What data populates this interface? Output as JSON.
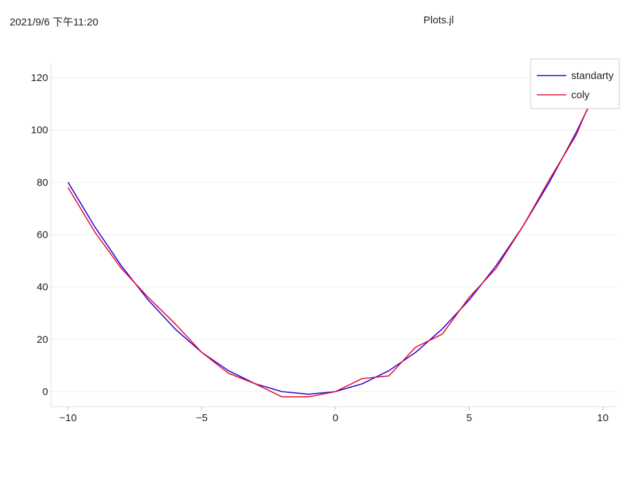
{
  "header": {
    "timestamp": "2021/9/6 下午11:20",
    "title": "Plots.jl"
  },
  "colors": {
    "series_blue": "#2a00d4",
    "series_red": "#e0102f",
    "grid": "#eeeeee",
    "axis": "#dddddd",
    "legend_border": "#cccccc"
  },
  "chart_data": {
    "type": "line",
    "title": "",
    "xlabel": "",
    "ylabel": "",
    "xlim": [
      -10,
      10
    ],
    "ylim": [
      -6,
      126
    ],
    "xticks": [
      -10,
      -5,
      0,
      5,
      10
    ],
    "xtick_labels": [
      "−10",
      "−5",
      "0",
      "5",
      "10"
    ],
    "yticks": [
      0,
      20,
      40,
      60,
      80,
      100,
      120
    ],
    "ytick_labels": [
      "0",
      "20",
      "40",
      "60",
      "80",
      "100",
      "120"
    ],
    "grid": true,
    "legend_position": "top-right",
    "x": [
      -10,
      -9,
      -8,
      -7,
      -6,
      -5,
      -4,
      -3,
      -2,
      -1,
      0,
      1,
      2,
      3,
      4,
      5,
      6,
      7,
      8,
      9,
      10
    ],
    "series": [
      {
        "name": "standarty",
        "color": "#2a00d4",
        "values": [
          80,
          63,
          48,
          35,
          24,
          15,
          8,
          3,
          0,
          -1,
          0,
          3,
          8,
          15,
          24,
          35,
          48,
          63,
          80,
          99,
          120
        ]
      },
      {
        "name": "coly",
        "color": "#e0102f",
        "values": [
          78,
          61,
          47,
          36,
          26,
          15,
          7,
          3,
          -2,
          -2,
          0,
          5,
          6,
          17,
          22,
          36,
          47,
          63,
          81,
          98,
          122
        ]
      }
    ]
  }
}
